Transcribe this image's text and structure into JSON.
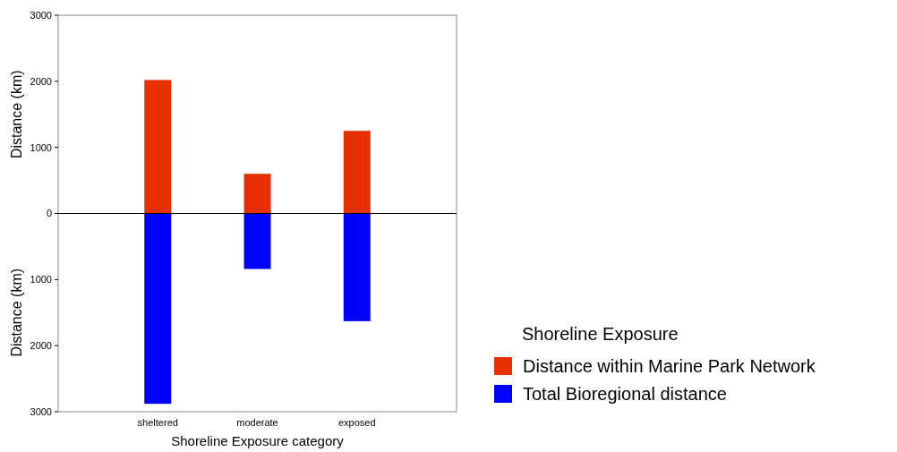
{
  "chart_data": {
    "type": "bar",
    "stacked": true,
    "xlabel": "Shoreline Exposure category",
    "ylabel": "Distance (km)",
    "legend_title": "Shoreline Exposure",
    "legend": "right",
    "categories": [
      "sheltered",
      "moderate",
      "exposed"
    ],
    "series": [
      {
        "name": "Distance within Marine Park Network",
        "color": "#e63000",
        "values": [
          2020,
          600,
          1250
        ]
      },
      {
        "name": "Total Bioregional distance",
        "color": "#0000ff",
        "values": [
          -2880,
          -840,
          -1630
        ]
      }
    ],
    "ylim": [
      -3000,
      3000
    ],
    "yticks": [
      {
        "value": 3000,
        "label": "3000"
      },
      {
        "value": 2000,
        "label": "2000"
      },
      {
        "value": 1000,
        "label": "1000"
      },
      {
        "value": 0,
        "label": "0"
      },
      {
        "value": -1000,
        "label": "1000"
      },
      {
        "value": -2000,
        "label": "2000"
      },
      {
        "value": -3000,
        "label": "3000"
      }
    ]
  }
}
